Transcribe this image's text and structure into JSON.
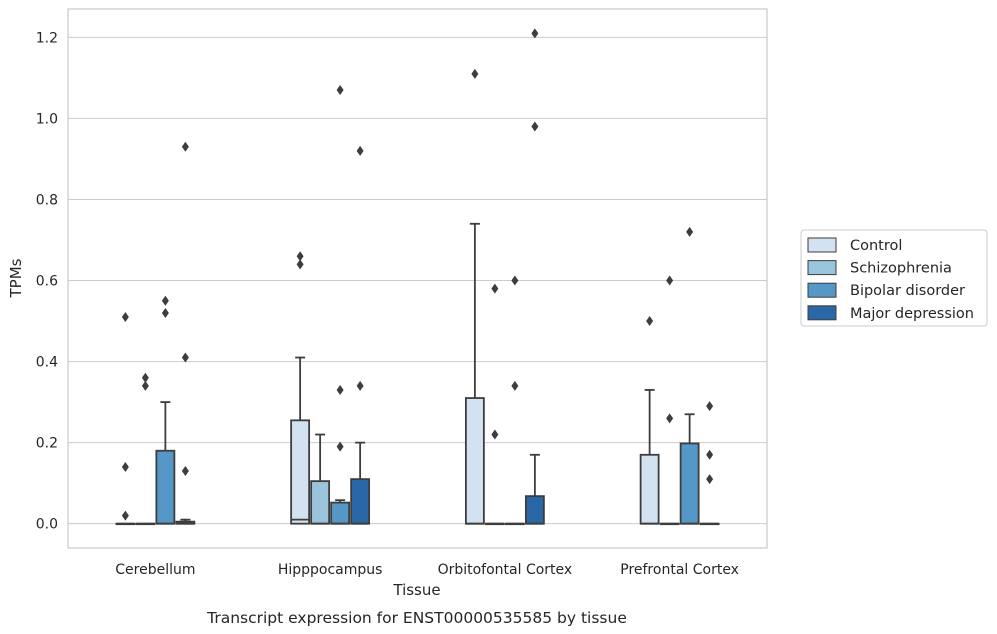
{
  "chart_data": {
    "type": "box",
    "title": "",
    "caption": "Transcript expression for ENST00000535585 by tissue",
    "xlabel": "Tissue",
    "ylabel": "TPMs",
    "ylim": [
      -0.06,
      1.27
    ],
    "yticks": [
      0.0,
      0.2,
      0.4,
      0.6,
      0.8,
      1.0,
      1.2
    ],
    "ytick_labels": [
      "0.0",
      "0.2",
      "0.4",
      "0.6",
      "0.8",
      "1.0",
      "1.2"
    ],
    "grid": "horizontal",
    "legend_position": "right",
    "categories": [
      "Cerebellum",
      "Hipppocampus",
      "Orbitofontal Cortex",
      "Prefrontal Cortex"
    ],
    "series": [
      {
        "name": "Control",
        "color": "#d2e2f0",
        "boxes": [
          {
            "q1": 0.0,
            "median": 0.0,
            "q3": 0.0,
            "whisker_low": 0.0,
            "whisker_high": 0.0,
            "outliers": [
              0.51,
              0.14,
              0.02
            ]
          },
          {
            "q1": 0.0,
            "median": 0.01,
            "q3": 0.255,
            "whisker_low": 0.0,
            "whisker_high": 0.41,
            "outliers": [
              0.66,
              0.64
            ]
          },
          {
            "q1": 0.0,
            "median": 0.0,
            "q3": 0.31,
            "whisker_low": 0.0,
            "whisker_high": 0.74,
            "outliers": [
              1.11
            ]
          },
          {
            "q1": 0.0,
            "median": 0.0,
            "q3": 0.17,
            "whisker_low": 0.0,
            "whisker_high": 0.33,
            "outliers": [
              0.5
            ]
          }
        ]
      },
      {
        "name": "Schizophrenia",
        "color": "#9ac3dc",
        "boxes": [
          {
            "q1": 0.0,
            "median": 0.0,
            "q3": 0.0,
            "whisker_low": 0.0,
            "whisker_high": 0.0,
            "outliers": [
              0.36,
              0.34
            ]
          },
          {
            "q1": 0.0,
            "median": 0.0,
            "q3": 0.105,
            "whisker_low": 0.0,
            "whisker_high": 0.22,
            "outliers": []
          },
          {
            "q1": 0.0,
            "median": 0.0,
            "q3": 0.0,
            "whisker_low": 0.0,
            "whisker_high": 0.0,
            "outliers": [
              0.58,
              0.22
            ]
          },
          {
            "q1": 0.0,
            "median": 0.0,
            "q3": 0.0,
            "whisker_low": 0.0,
            "whisker_high": 0.0,
            "outliers": [
              0.6,
              0.26
            ]
          }
        ]
      },
      {
        "name": "Bipolar disorder",
        "color": "#5597c6",
        "boxes": [
          {
            "q1": 0.0,
            "median": 0.0,
            "q3": 0.18,
            "whisker_low": 0.0,
            "whisker_high": 0.3,
            "outliers": [
              0.55,
              0.52
            ]
          },
          {
            "q1": 0.0,
            "median": 0.0,
            "q3": 0.052,
            "whisker_low": 0.0,
            "whisker_high": 0.058,
            "outliers": [
              1.07,
              0.33,
              0.19
            ]
          },
          {
            "q1": 0.0,
            "median": 0.0,
            "q3": 0.0,
            "whisker_low": 0.0,
            "whisker_high": 0.0,
            "outliers": [
              0.6,
              0.34
            ]
          },
          {
            "q1": 0.0,
            "median": 0.0,
            "q3": 0.198,
            "whisker_low": 0.0,
            "whisker_high": 0.27,
            "outliers": [
              0.72
            ]
          }
        ]
      },
      {
        "name": "Major depression",
        "color": "#2a67a7",
        "boxes": [
          {
            "q1": 0.0,
            "median": 0.0,
            "q3": 0.005,
            "whisker_low": 0.0,
            "whisker_high": 0.01,
            "outliers": [
              0.93,
              0.41,
              0.13
            ]
          },
          {
            "q1": 0.0,
            "median": 0.0,
            "q3": 0.11,
            "whisker_low": 0.0,
            "whisker_high": 0.2,
            "outliers": [
              0.92,
              0.34
            ]
          },
          {
            "q1": 0.0,
            "median": 0.0,
            "q3": 0.068,
            "whisker_low": 0.0,
            "whisker_high": 0.17,
            "outliers": [
              1.21,
              0.98
            ]
          },
          {
            "q1": 0.0,
            "median": 0.0,
            "q3": 0.0,
            "whisker_low": 0.0,
            "whisker_high": 0.0,
            "outliers": [
              0.29,
              0.17,
              0.11
            ]
          }
        ]
      }
    ]
  }
}
